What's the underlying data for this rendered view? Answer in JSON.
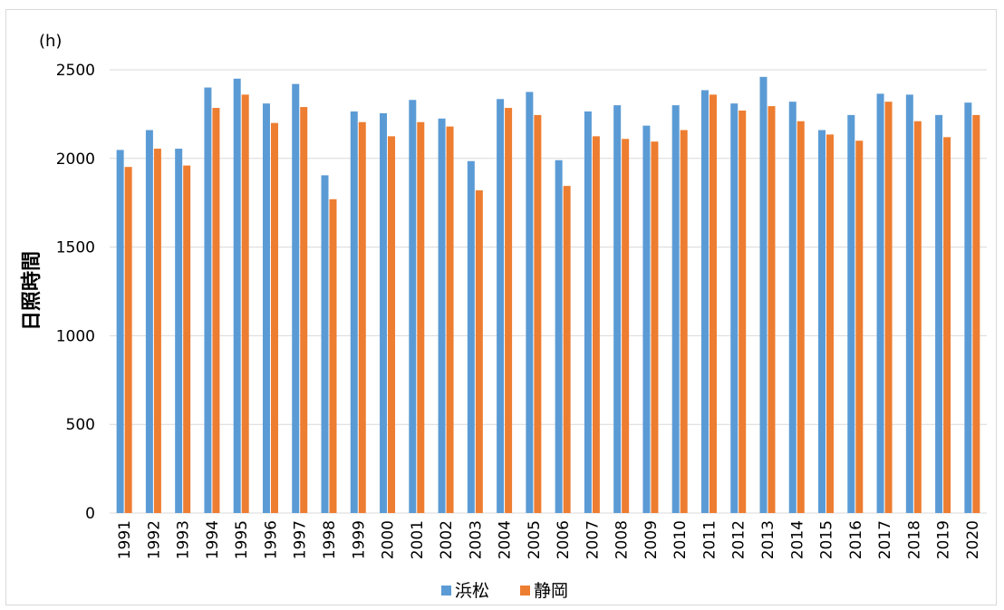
{
  "chart_data": {
    "type": "bar",
    "unit_label": "(h)",
    "ylabel": "日照時間",
    "xlabel": "",
    "ylim": [
      0,
      2500
    ],
    "yticks": [
      0,
      500,
      1000,
      1500,
      2000,
      2500
    ],
    "grid": true,
    "legend_position": "bottom",
    "categories": [
      "1991",
      "1992",
      "1993",
      "1994",
      "1995",
      "1996",
      "1997",
      "1998",
      "1999",
      "2000",
      "2001",
      "2002",
      "2003",
      "2004",
      "2005",
      "2006",
      "2007",
      "2008",
      "2009",
      "2010",
      "2011",
      "2012",
      "2013",
      "2014",
      "2015",
      "2016",
      "2017",
      "2018",
      "2019",
      "2020"
    ],
    "series": [
      {
        "name": "浜松",
        "color": "#5b9bd5",
        "values": [
          2048,
          2160,
          2055,
          2400,
          2450,
          2310,
          2420,
          1905,
          2265,
          2255,
          2330,
          2225,
          1985,
          2335,
          2375,
          1990,
          2265,
          2300,
          2185,
          2300,
          2385,
          2310,
          2460,
          2320,
          2160,
          2245,
          2365,
          2360,
          2245,
          2315
        ]
      },
      {
        "name": "静岡",
        "color": "#ed7d31",
        "values": [
          1952,
          2055,
          1960,
          2285,
          2360,
          2200,
          2290,
          1770,
          2205,
          2125,
          2205,
          2180,
          1820,
          2285,
          2245,
          1845,
          2125,
          2110,
          2095,
          2160,
          2360,
          2270,
          2295,
          2210,
          2135,
          2100,
          2320,
          2210,
          2120,
          2245
        ]
      }
    ]
  }
}
